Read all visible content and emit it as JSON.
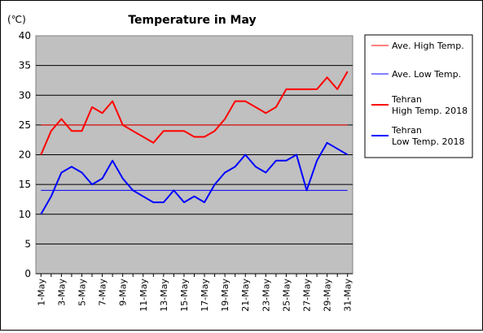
{
  "chart_data": {
    "type": "line",
    "title": "Temperature in May",
    "unit_label": "(℃)",
    "ylim": [
      0,
      40
    ],
    "yticks": [
      "0",
      "5",
      "10",
      "15",
      "20",
      "25",
      "30",
      "35",
      "40"
    ],
    "x_tick_labels": [
      "1-May",
      "3-May",
      "5-May",
      "7-May",
      "9-May",
      "11-May",
      "13-May",
      "15-May",
      "17-May",
      "19-May",
      "21-May",
      "23-May",
      "25-May",
      "27-May",
      "29-May",
      "31-May"
    ],
    "days": [
      1,
      2,
      3,
      4,
      5,
      6,
      7,
      8,
      9,
      10,
      11,
      12,
      13,
      14,
      15,
      16,
      17,
      18,
      19,
      20,
      21,
      22,
      23,
      24,
      25,
      26,
      27,
      28,
      29,
      30,
      31
    ],
    "grid": true,
    "legend_position": "right",
    "series": [
      {
        "name": "Ave. High Temp.",
        "color": "#ff0000",
        "width": 1,
        "values": [
          25,
          25,
          25,
          25,
          25,
          25,
          25,
          25,
          25,
          25,
          25,
          25,
          25,
          25,
          25,
          25,
          25,
          25,
          25,
          25,
          25,
          25,
          25,
          25,
          25,
          25,
          25,
          25,
          25,
          25,
          25
        ]
      },
      {
        "name": "Ave. Low Temp.",
        "color": "#0000ff",
        "width": 1,
        "values": [
          14,
          14,
          14,
          14,
          14,
          14,
          14,
          14,
          14,
          14,
          14,
          14,
          14,
          14,
          14,
          14,
          14,
          14,
          14,
          14,
          14,
          14,
          14,
          14,
          14,
          14,
          14,
          14,
          14,
          14,
          14
        ]
      },
      {
        "name": "Tehran\nHigh Temp. 2018",
        "color": "#ff0000",
        "width": 2,
        "values": [
          20,
          24,
          26,
          24,
          24,
          28,
          27,
          29,
          25,
          24,
          23,
          22,
          24,
          24,
          24,
          23,
          23,
          24,
          26,
          29,
          29,
          28,
          27,
          28,
          31,
          31,
          31,
          31,
          33,
          31,
          34
        ]
      },
      {
        "name": "Tehran\nLow Temp. 2018",
        "color": "#0000ff",
        "width": 2,
        "values": [
          10,
          13,
          17,
          18,
          17,
          15,
          16,
          19,
          16,
          14,
          13,
          12,
          12,
          14,
          12,
          13,
          12,
          15,
          17,
          18,
          20,
          18,
          17,
          19,
          19,
          20,
          14,
          19,
          22,
          21,
          20
        ]
      }
    ]
  }
}
